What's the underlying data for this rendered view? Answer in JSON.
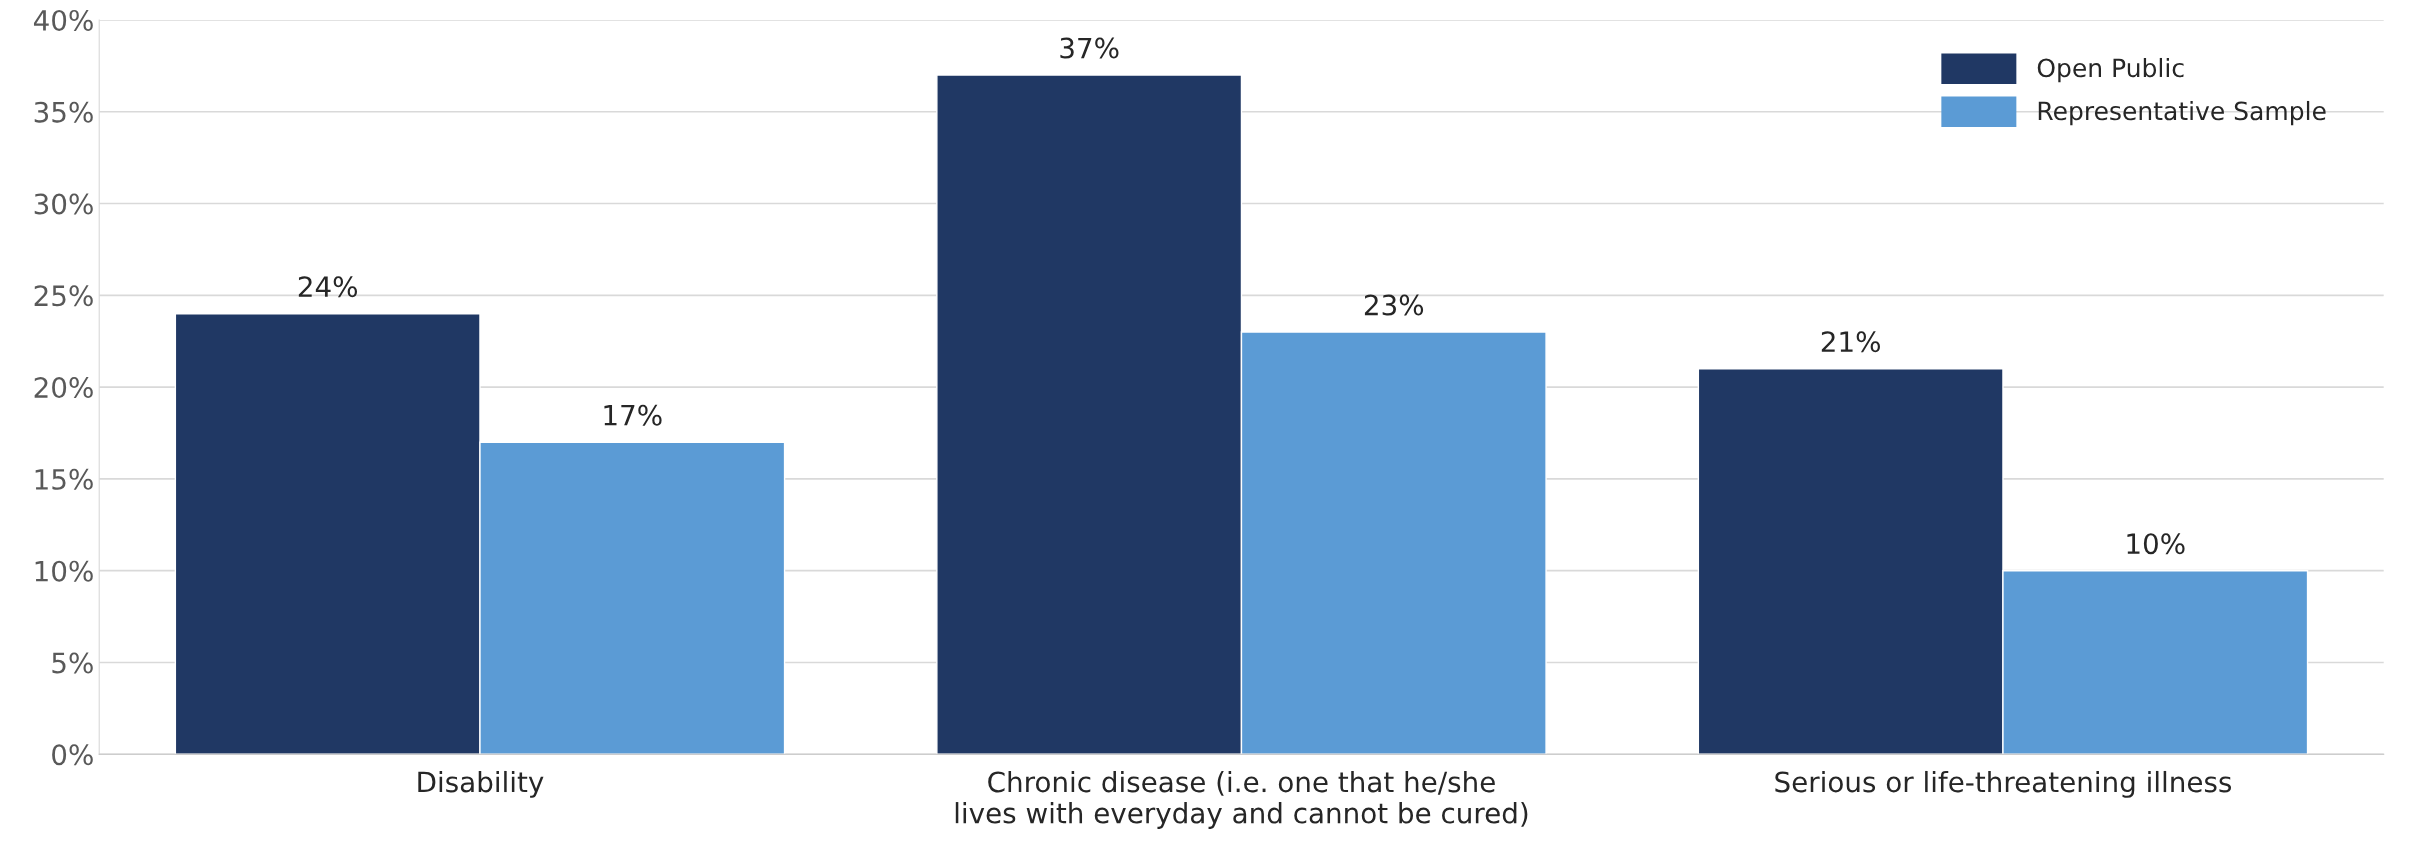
{
  "chart_data": {
    "type": "bar",
    "categories": [
      "Disability",
      "Chronic disease (i.e. one that he/she lives with everyday and cannot be cured)",
      "Serious or life-threatening illness"
    ],
    "series": [
      {
        "name": "Open Public",
        "color": "#203864",
        "values": [
          24,
          37,
          21
        ],
        "value_labels": [
          "24%",
          "37%",
          "21%"
        ]
      },
      {
        "name": "Representative Sample",
        "color": "#5b9bd5",
        "values": [
          17,
          23,
          10
        ],
        "value_labels": [
          "17%",
          "23%",
          "10%"
        ]
      }
    ],
    "ylim": [
      0,
      40
    ],
    "yticks": [
      {
        "value": 0,
        "label": "0%"
      },
      {
        "value": 5,
        "label": "5%"
      },
      {
        "value": 10,
        "label": "10%"
      },
      {
        "value": 15,
        "label": "15%"
      },
      {
        "value": 20,
        "label": "20%"
      },
      {
        "value": 25,
        "label": "25%"
      },
      {
        "value": 30,
        "label": "30%"
      },
      {
        "value": 35,
        "label": "35%"
      },
      {
        "value": 40,
        "label": "40%"
      }
    ],
    "grid": "y",
    "legend": "top right"
  }
}
